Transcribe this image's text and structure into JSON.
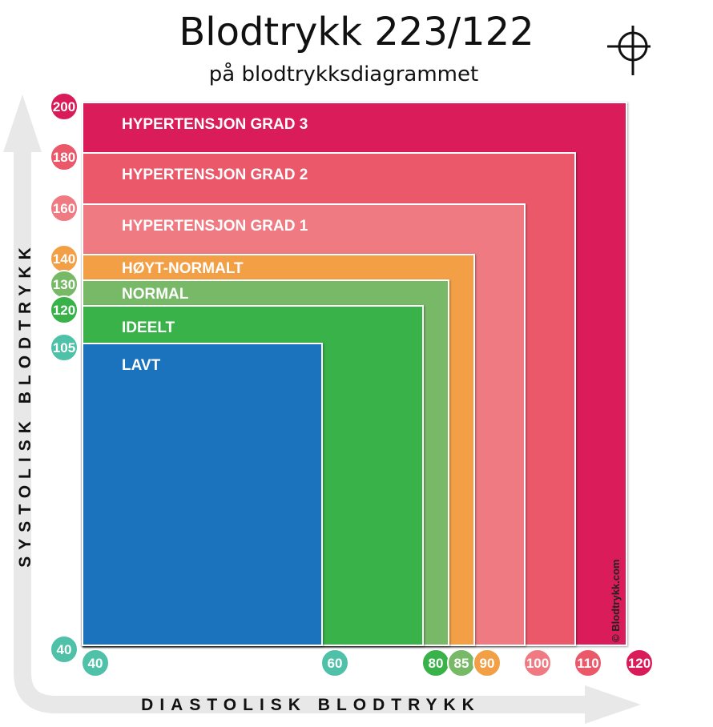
{
  "title": "Blodtrykk 223/122",
  "subtitle": "på blodtrykksdiagrammet",
  "icons": {
    "marker": "crosshair-icon"
  },
  "chart_data": {
    "type": "area",
    "xlabel": "DIASTOLISK BLODTRYKK",
    "ylabel": "SYSTOLISK BLODTRYKK",
    "xlim": [
      40,
      120
    ],
    "ylim": [
      40,
      200
    ],
    "copyright": "© Blodtrykk.com",
    "zones": [
      {
        "label": "HYPERTENSJON GRAD 3",
        "systolic_max": 200,
        "diastolic_max": 120,
        "color": "#da1b5a"
      },
      {
        "label": "HYPERTENSJON GRAD 2",
        "systolic_max": 180,
        "diastolic_max": 110,
        "color": "#ea5869"
      },
      {
        "label": "HYPERTENSJON GRAD 1",
        "systolic_max": 160,
        "diastolic_max": 100,
        "color": "#ef7a82"
      },
      {
        "label": "HØYT-NORMALT",
        "systolic_max": 140,
        "diastolic_max": 90,
        "color": "#f39f45"
      },
      {
        "label": "NORMAL",
        "systolic_max": 130,
        "diastolic_max": 85,
        "color": "#77b966"
      },
      {
        "label": "IDEELT",
        "systolic_max": 120,
        "diastolic_max": 80,
        "color": "#39b24a"
      },
      {
        "label": "LAVT",
        "systolic_max": 105,
        "diastolic_max": 60,
        "color": "#1e73bd"
      }
    ],
    "y_ticks": [
      {
        "value": 200,
        "label": "200",
        "color": "#da1b5a"
      },
      {
        "value": 180,
        "label": "180",
        "color": "#ea5869"
      },
      {
        "value": 160,
        "label": "160",
        "color": "#ef7a82"
      },
      {
        "value": 140,
        "label": "140",
        "color": "#f39f45"
      },
      {
        "value": 130,
        "label": "130",
        "color": "#77b966"
      },
      {
        "value": 120,
        "label": "120",
        "color": "#39b24a"
      },
      {
        "value": 105,
        "label": "105",
        "color": "#4fc1a8"
      },
      {
        "value": 40,
        "label": "40",
        "color": "#4fc1a8"
      }
    ],
    "x_ticks": [
      {
        "value": 40,
        "label": "40",
        "color": "#4fc1a8"
      },
      {
        "value": 60,
        "label": "60",
        "color": "#4fc1a8"
      },
      {
        "value": 80,
        "label": "80",
        "color": "#39b24a"
      },
      {
        "value": 85,
        "label": "85",
        "color": "#77b966"
      },
      {
        "value": 90,
        "label": "90",
        "color": "#f39f45"
      },
      {
        "value": 100,
        "label": "100",
        "color": "#ef7a82"
      },
      {
        "value": 110,
        "label": "110",
        "color": "#ea5869"
      },
      {
        "value": 120,
        "label": "120",
        "color": "#da1b5a"
      }
    ]
  }
}
